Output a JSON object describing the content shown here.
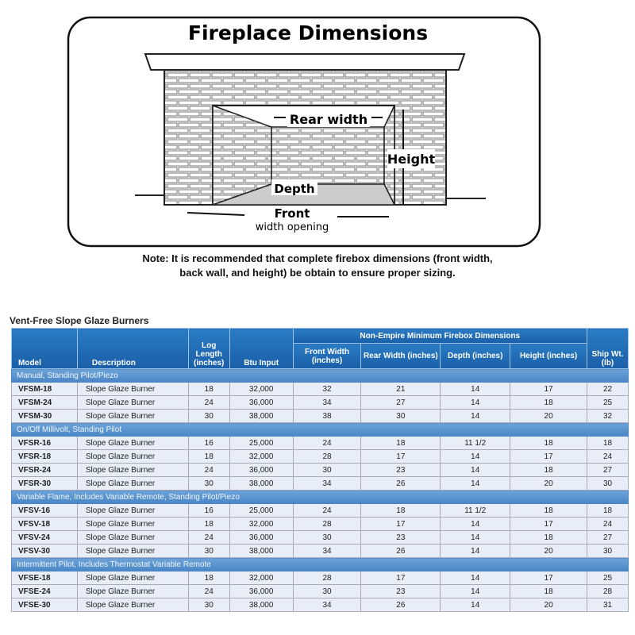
{
  "diagram": {
    "title": "Fireplace Dimensions",
    "labels": {
      "rear": "Rear width",
      "height": "Height",
      "depth": "Depth",
      "front": "Front",
      "front_sub": "width opening"
    }
  },
  "note": {
    "line1": "Note: It is recommended that complete firebox dimensions (front width,",
    "line2": "back wall, and height) be obtain to ensure proper sizing."
  },
  "table": {
    "title": "Vent-Free Slope Glaze Burners",
    "headers": {
      "model": "Model",
      "description": "Description",
      "log": "Log Length (inches)",
      "btu": "Btu Input",
      "group": "Non-Empire Minimum Firebox Dimensions",
      "front": "Front Width (inches)",
      "rear": "Rear Width (inches)",
      "depth": "Depth (inches)",
      "height": "Height (inches)",
      "ship": "Ship Wt. (lb)"
    },
    "groups": [
      {
        "label": "Manual, Standing Pilot/Piezo",
        "rows": [
          [
            "VFSM-18",
            "Slope Glaze Burner",
            "18",
            "32,000",
            "32",
            "21",
            "14",
            "17",
            "22"
          ],
          [
            "VFSM-24",
            "Slope Glaze Burner",
            "24",
            "36,000",
            "34",
            "27",
            "14",
            "18",
            "25"
          ],
          [
            "VFSM-30",
            "Slope Glaze Burner",
            "30",
            "38,000",
            "38",
            "30",
            "14",
            "20",
            "32"
          ]
        ]
      },
      {
        "label": "On/Off Millivolt, Standing Pilot",
        "rows": [
          [
            "VFSR-16",
            "Slope Glaze Burner",
            "16",
            "25,000",
            "24",
            "18",
            "11 1/2",
            "18",
            "18"
          ],
          [
            "VFSR-18",
            "Slope Glaze Burner",
            "18",
            "32,000",
            "28",
            "17",
            "14",
            "17",
            "24"
          ],
          [
            "VFSR-24",
            "Slope Glaze Burner",
            "24",
            "36,000",
            "30",
            "23",
            "14",
            "18",
            "27"
          ],
          [
            "VFSR-30",
            "Slope Glaze Burner",
            "30",
            "38,000",
            "34",
            "26",
            "14",
            "20",
            "30"
          ]
        ]
      },
      {
        "label": "Variable Flame, Includes Variable Remote, Standing Pilot/Piezo",
        "rows": [
          [
            "VFSV-16",
            "Slope Glaze Burner",
            "16",
            "25,000",
            "24",
            "18",
            "11 1/2",
            "18",
            "18"
          ],
          [
            "VFSV-18",
            "Slope Glaze Burner",
            "18",
            "32,000",
            "28",
            "17",
            "14",
            "17",
            "24"
          ],
          [
            "VFSV-24",
            "Slope Glaze Burner",
            "24",
            "36,000",
            "30",
            "23",
            "14",
            "18",
            "27"
          ],
          [
            "VFSV-30",
            "Slope Glaze Burner",
            "30",
            "38,000",
            "34",
            "26",
            "14",
            "20",
            "30"
          ]
        ]
      },
      {
        "label": "Intermittent Pilot, Includes Thermostat Variable Remote",
        "rows": [
          [
            "VFSE-18",
            "Slope Glaze Burner",
            "18",
            "32,000",
            "28",
            "17",
            "14",
            "17",
            "25"
          ],
          [
            "VFSE-24",
            "Slope Glaze Burner",
            "24",
            "36,000",
            "30",
            "23",
            "14",
            "18",
            "28"
          ],
          [
            "VFSE-30",
            "Slope Glaze Burner",
            "30",
            "38,000",
            "34",
            "26",
            "14",
            "20",
            "31"
          ]
        ]
      }
    ]
  }
}
